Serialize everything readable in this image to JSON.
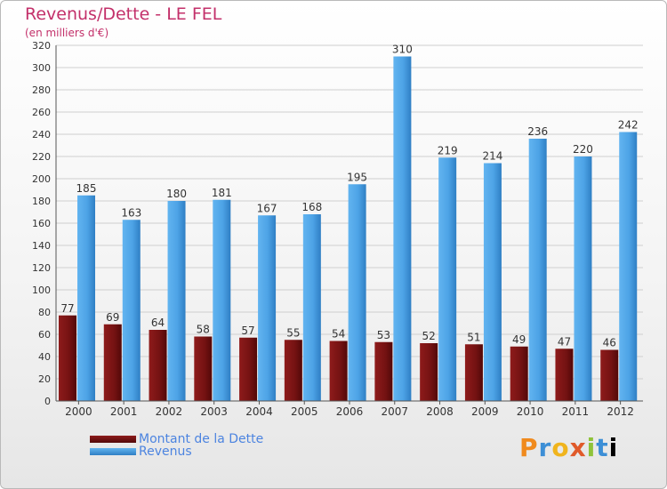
{
  "title": "Revenus/Dette - LE FEL",
  "subtitle": "(en milliers d'€)",
  "legend": {
    "debt_label": "Montant de la Dette",
    "revenue_label": "Revenus"
  },
  "logo_text": "Proxiti",
  "colors": {
    "debt": "#7a1414",
    "revenue": "#4da3e6",
    "title": "#c3306a",
    "legend_text": "#4c84e0"
  },
  "chart_data": {
    "type": "bar",
    "categories": [
      "2000",
      "2001",
      "2002",
      "2003",
      "2004",
      "2005",
      "2006",
      "2007",
      "2008",
      "2009",
      "2010",
      "2011",
      "2012"
    ],
    "series": [
      {
        "name": "Montant de la Dette",
        "values": [
          77,
          69,
          64,
          58,
          57,
          55,
          54,
          53,
          52,
          51,
          49,
          47,
          46
        ]
      },
      {
        "name": "Revenus",
        "values": [
          185,
          163,
          180,
          181,
          167,
          168,
          195,
          310,
          219,
          214,
          236,
          220,
          242
        ]
      }
    ],
    "ylim": [
      0,
      320
    ],
    "yticks": [
      0,
      20,
      40,
      60,
      80,
      100,
      120,
      140,
      160,
      180,
      200,
      220,
      240,
      260,
      280,
      300,
      320
    ],
    "grid": true
  }
}
